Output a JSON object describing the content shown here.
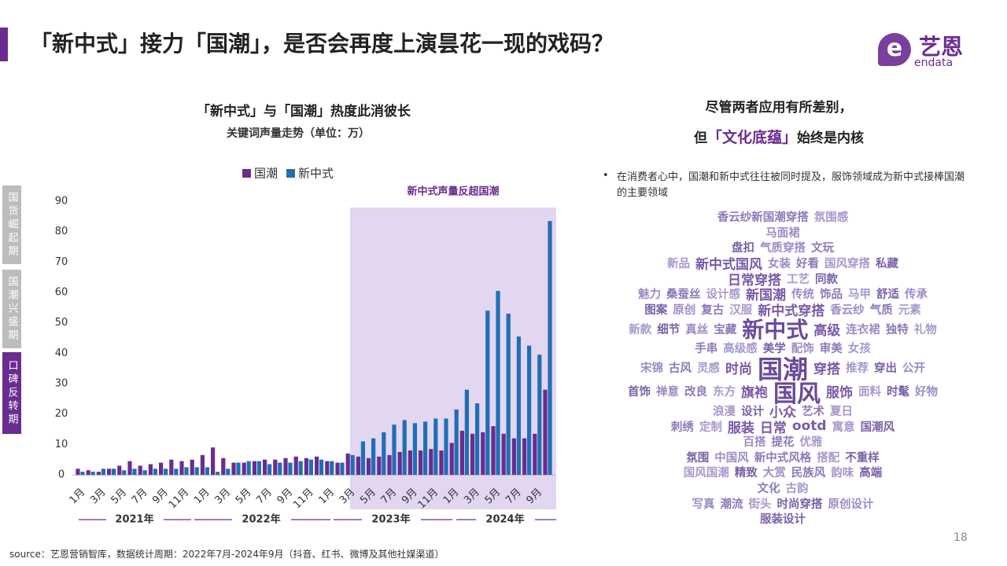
{
  "header": {
    "title": "「新中式」接力「国潮」，是否会再度上演昙花一现的戏码？",
    "logo": "艺恩",
    "logo_sub": "endata"
  },
  "sidebar": [
    "国货崛起期",
    "国潮兴盛期",
    "口碑反转期"
  ],
  "chart_data": {
    "type": "bar",
    "title": "「新中式」与「国潮」热度此消彼长",
    "subtitle": "关键词声量走势（单位：万）",
    "annotation": "新中式声量反超国潮",
    "years": [
      "2021年",
      "2022年",
      "2023年",
      "2024年"
    ],
    "categories": [
      "1月",
      null,
      "3月",
      null,
      "5月",
      null,
      "7月",
      null,
      "9月",
      null,
      "11月",
      null,
      "1月",
      null,
      "3月",
      null,
      "5月",
      null,
      "7月",
      null,
      "9月",
      null,
      "11月",
      null,
      "1月",
      null,
      "3月",
      null,
      "5月",
      null,
      "7月",
      null,
      "9月",
      null,
      "11月",
      null,
      "1月",
      null,
      "3月",
      null,
      "5月",
      null,
      "7月",
      null,
      "9月",
      null
    ],
    "series": [
      {
        "name": "国潮",
        "color": "#6a2c91",
        "values": [
          2,
          1.5,
          1,
          2,
          3,
          4.5,
          3,
          3.5,
          4,
          5,
          4.5,
          5,
          6.5,
          9,
          5.5,
          4,
          4,
          4.5,
          5,
          5,
          5.5,
          6,
          5.5,
          6,
          4.5,
          4,
          7,
          6,
          5.5,
          6,
          6.5,
          7.5,
          8,
          8,
          8.5,
          8,
          10.5,
          14.5,
          13.5,
          14,
          16,
          13.5,
          12,
          12,
          13.5,
          28
        ]
      },
      {
        "name": "新中式",
        "color": "#1f6fb5",
        "values": [
          1,
          1,
          2,
          2,
          1.5,
          2,
          1.5,
          2,
          2,
          2,
          2.5,
          2.5,
          2.5,
          1,
          2,
          4,
          4.5,
          4.5,
          3.5,
          4,
          4,
          4.5,
          5,
          5,
          4.5,
          4,
          6.5,
          11,
          12,
          14,
          16.5,
          18,
          17,
          17.5,
          18.5,
          18.5,
          21.5,
          28,
          23.5,
          54,
          60.5,
          53,
          45.5,
          42.5,
          39.5,
          83.5
        ]
      }
    ],
    "ylim": [
      0,
      90
    ],
    "yticks": [
      0,
      10,
      20,
      30,
      40,
      50,
      60,
      70,
      80,
      90
    ]
  },
  "right": {
    "heading1": "尽管两者应用有所差别，",
    "heading2_pre": "但",
    "heading2_em": "「文化底蕴」",
    "heading2_post": "始终是内核",
    "bullet": "在消费者心中，国潮和新中式往往被同时提及，服饰领域成为新中式接棒国潮的主要领域",
    "word_cloud": [
      [
        "香云纱新国潮穿搭",
        "氛围感"
      ],
      [
        "马面裙"
      ],
      [
        "盘扣",
        "气质穿搭",
        "文玩"
      ],
      [
        "新品",
        "新中式国风",
        "女装",
        "好看",
        "国风穿搭",
        "私藏"
      ],
      [
        "日常穿搭",
        "工艺",
        "同款"
      ],
      [
        "魅力",
        "桑蚕丝",
        "设计感",
        "新国潮",
        "传统",
        "饰品",
        "马甲",
        "舒适",
        "传承"
      ],
      [
        "图案",
        "原创",
        "复古",
        "汉服",
        "新中式穿搭",
        "香云纱",
        "气质",
        "元素"
      ],
      [
        "新款",
        "细节",
        "真丝",
        "宝藏",
        "新中式",
        "高级",
        "连衣裙",
        "独特",
        "礼物"
      ],
      [
        "手串",
        "高级感",
        "美学",
        "配饰",
        "审美",
        "女孩"
      ],
      [
        "宋锦",
        "古风",
        "灵感",
        "时尚",
        "国潮",
        "穿搭",
        "推荐",
        "穿出",
        "公开"
      ],
      [
        "首饰",
        "禅意",
        "改良",
        "东方",
        "旗袍",
        "国风",
        "服饰",
        "面料",
        "时髦",
        "好物"
      ],
      [
        "浪漫",
        "设计",
        "小众",
        "艺术",
        "夏日"
      ],
      [
        "刺绣",
        "定制",
        "服装",
        "日常",
        "ootd",
        "寓意",
        "国潮风"
      ],
      [
        "百搭",
        "提花",
        "优雅"
      ],
      [
        "氛围",
        "中国风",
        "新中式风格",
        "搭配",
        "不重样"
      ],
      [
        "国风国潮",
        "精致",
        "大赏",
        "民族风",
        "韵味",
        "高端"
      ],
      [
        "文化",
        "古韵"
      ],
      [
        "写真",
        "潮流",
        "街头",
        "时尚穿搭",
        "原创设计"
      ],
      [
        "服装设计"
      ]
    ]
  },
  "source": "source：艺恩营销智库，数据统计周期：2022年7月-2024年9月（抖音、红书、微博及其他社媒渠道）",
  "page": "18"
}
